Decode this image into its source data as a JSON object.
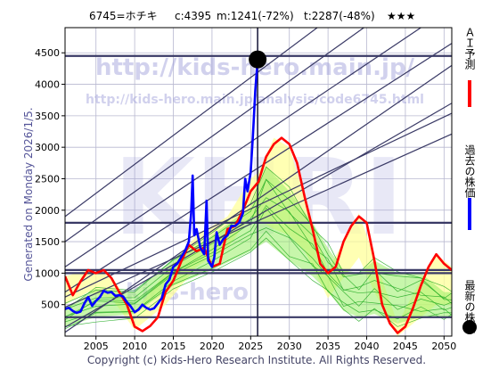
{
  "header": {
    "code_name": "6745=ホチキ",
    "close": "c:4395",
    "min": "m:1241(-72%)",
    "target": "t:2287(-48%)",
    "stars": "★★★"
  },
  "watermarks": {
    "url_main": "http://kids-hero.main.jp/",
    "url_page": "http://kids-hero.main.jp/analysis/code6745.html",
    "big": "KHRI",
    "bottom": "kids-hero"
  },
  "side_left": "Generated on Monday 2026/1/5.",
  "footer": "Copyright (c) Kids-Hero Research Institute. All Rights Reserved.",
  "legend": [
    {
      "label": "ＡＩ予測",
      "color": "#ff0000",
      "kind": "line"
    },
    {
      "label": "過去の株価",
      "color": "#0000ff",
      "kind": "line"
    },
    {
      "label": "最新の株価",
      "color": "#000000",
      "kind": "dot"
    }
  ],
  "colors": {
    "plot_bg": "#ffffff",
    "grid": "#b8b8d0",
    "band_fill": "#ffff99",
    "green_fill": "#99ee66",
    "green_line": "#22aa22",
    "ref_line": "#3a3a66",
    "price": "#0000ff",
    "forecast": "#ff0000"
  },
  "chart_data": {
    "type": "line",
    "xlim": [
      2001.0,
      2051.0
    ],
    "ylim": [
      0,
      4900
    ],
    "x_ticks": [
      2005,
      2010,
      2015,
      2020,
      2025,
      2030,
      2035,
      2040,
      2045,
      2050
    ],
    "y_ticks": [
      500,
      1000,
      1500,
      2000,
      2500,
      3000,
      3500,
      4000,
      4500
    ],
    "grid": true,
    "latest": {
      "x": 2025.9,
      "y": 4395
    },
    "hlines": [
      4450,
      1800,
      1050,
      1000,
      300
    ],
    "vline": 2025.9,
    "diagonals": [
      [
        [
          2001,
          460
        ],
        [
          2051,
          3210
        ]
      ],
      [
        [
          2001,
          620
        ],
        [
          2051,
          3540
        ]
      ],
      [
        [
          2001,
          140
        ],
        [
          2051,
          3700
        ]
      ],
      [
        [
          2001,
          60
        ],
        [
          2051,
          4300
        ]
      ],
      [
        [
          2001,
          700
        ],
        [
          2051,
          4650
        ]
      ],
      [
        [
          2001,
          1100
        ],
        [
          2051,
          5230
        ]
      ],
      [
        [
          2001,
          1500
        ],
        [
          2051,
          5900
        ]
      ],
      [
        [
          2001,
          1900
        ],
        [
          2051,
          6500
        ]
      ]
    ],
    "price_series": [
      [
        2001.0,
        430
      ],
      [
        2001.5,
        450
      ],
      [
        2002.0,
        400
      ],
      [
        2002.5,
        370
      ],
      [
        2003.0,
        390
      ],
      [
        2003.5,
        520
      ],
      [
        2004.0,
        620
      ],
      [
        2004.5,
        480
      ],
      [
        2005.0,
        560
      ],
      [
        2005.5,
        620
      ],
      [
        2006.0,
        720
      ],
      [
        2006.5,
        690
      ],
      [
        2007.0,
        700
      ],
      [
        2007.5,
        640
      ],
      [
        2008.0,
        650
      ],
      [
        2008.5,
        630
      ],
      [
        2009.0,
        540
      ],
      [
        2009.5,
        470
      ],
      [
        2010.0,
        380
      ],
      [
        2010.5,
        420
      ],
      [
        2011.0,
        500
      ],
      [
        2011.5,
        450
      ],
      [
        2012.0,
        420
      ],
      [
        2012.5,
        440
      ],
      [
        2013.0,
        520
      ],
      [
        2013.5,
        600
      ],
      [
        2014.0,
        820
      ],
      [
        2014.5,
        900
      ],
      [
        2015.0,
        1100
      ],
      [
        2015.5,
        1150
      ],
      [
        2016.0,
        1250
      ],
      [
        2016.5,
        1350
      ],
      [
        2017.0,
        1500
      ],
      [
        2017.3,
        1950
      ],
      [
        2017.5,
        2550
      ],
      [
        2017.7,
        1600
      ],
      [
        2018.0,
        1700
      ],
      [
        2018.5,
        1400
      ],
      [
        2019.0,
        1300
      ],
      [
        2019.3,
        2150
      ],
      [
        2019.5,
        1200
      ],
      [
        2020.0,
        1100
      ],
      [
        2020.3,
        1250
      ],
      [
        2020.6,
        1650
      ],
      [
        2021.0,
        1450
      ],
      [
        2021.5,
        1550
      ],
      [
        2022.0,
        1600
      ],
      [
        2022.5,
        1750
      ],
      [
        2023.0,
        1750
      ],
      [
        2023.5,
        1800
      ],
      [
        2024.0,
        1950
      ],
      [
        2024.3,
        2500
      ],
      [
        2024.6,
        2300
      ],
      [
        2025.0,
        2600
      ],
      [
        2025.3,
        3200
      ],
      [
        2025.6,
        3900
      ],
      [
        2025.9,
        4395
      ]
    ],
    "forecast_series": [
      [
        2001.0,
        950
      ],
      [
        2002.0,
        650
      ],
      [
        2003.0,
        870
      ],
      [
        2004.0,
        1050
      ],
      [
        2005.0,
        1000
      ],
      [
        2006.0,
        1050
      ],
      [
        2007.0,
        920
      ],
      [
        2008.0,
        700
      ],
      [
        2009.0,
        500
      ],
      [
        2010.0,
        150
      ],
      [
        2011.0,
        80
      ],
      [
        2012.0,
        160
      ],
      [
        2013.0,
        300
      ],
      [
        2014.0,
        700
      ],
      [
        2015.0,
        880
      ],
      [
        2016.0,
        1180
      ],
      [
        2017.0,
        1450
      ],
      [
        2018.0,
        1350
      ],
      [
        2019.0,
        1400
      ],
      [
        2020.0,
        1100
      ],
      [
        2021.0,
        1150
      ],
      [
        2022.0,
        1700
      ],
      [
        2023.0,
        1750
      ],
      [
        2024.0,
        2000
      ],
      [
        2025.0,
        2300
      ],
      [
        2026.0,
        2450
      ],
      [
        2027.0,
        2850
      ],
      [
        2028.0,
        3050
      ],
      [
        2029.0,
        3150
      ],
      [
        2030.0,
        3050
      ],
      [
        2031.0,
        2750
      ],
      [
        2032.0,
        2200
      ],
      [
        2033.0,
        1700
      ],
      [
        2034.0,
        1150
      ],
      [
        2035.0,
        1000
      ],
      [
        2036.0,
        1100
      ],
      [
        2037.0,
        1500
      ],
      [
        2038.0,
        1750
      ],
      [
        2039.0,
        1900
      ],
      [
        2040.0,
        1800
      ],
      [
        2041.0,
        1200
      ],
      [
        2042.0,
        500
      ],
      [
        2043.0,
        200
      ],
      [
        2044.0,
        50
      ],
      [
        2045.0,
        150
      ],
      [
        2046.0,
        450
      ],
      [
        2047.0,
        800
      ],
      [
        2048.0,
        1100
      ],
      [
        2049.0,
        1300
      ],
      [
        2050.0,
        1150
      ],
      [
        2051.0,
        1050
      ]
    ],
    "band_upper": [
      [
        2001.0,
        950
      ],
      [
        2004.0,
        1050
      ],
      [
        2007.0,
        950
      ],
      [
        2010.0,
        400
      ],
      [
        2014.0,
        1000
      ],
      [
        2018.0,
        1600
      ],
      [
        2022.0,
        1900
      ],
      [
        2025.0,
        2500
      ],
      [
        2026.0,
        2600
      ],
      [
        2028.0,
        3150
      ],
      [
        2030.0,
        3000
      ],
      [
        2032.0,
        2200
      ],
      [
        2035.0,
        1050
      ],
      [
        2039.0,
        1950
      ],
      [
        2041.0,
        1250
      ],
      [
        2044.0,
        200
      ],
      [
        2047.0,
        900
      ],
      [
        2049.0,
        1300
      ],
      [
        2051.0,
        1100
      ]
    ],
    "band_lower": [
      [
        2001.0,
        500
      ],
      [
        2004.0,
        700
      ],
      [
        2007.0,
        600
      ],
      [
        2010.0,
        100
      ],
      [
        2014.0,
        500
      ],
      [
        2018.0,
        1100
      ],
      [
        2022.0,
        1400
      ],
      [
        2025.0,
        1900
      ],
      [
        2026.0,
        1850
      ],
      [
        2028.0,
        1700
      ],
      [
        2030.0,
        1600
      ],
      [
        2032.0,
        1350
      ],
      [
        2035.0,
        600
      ],
      [
        2039.0,
        1250
      ],
      [
        2041.0,
        700
      ],
      [
        2044.0,
        0
      ],
      [
        2047.0,
        300
      ],
      [
        2049.0,
        500
      ],
      [
        2051.0,
        500
      ]
    ],
    "green_upper": [
      [
        2001.0,
        450
      ],
      [
        2005.0,
        750
      ],
      [
        2010.0,
        700
      ],
      [
        2015.0,
        1200
      ],
      [
        2020.0,
        1600
      ],
      [
        2025.0,
        2050
      ],
      [
        2027.0,
        2700
      ],
      [
        2030.0,
        2300
      ],
      [
        2033.0,
        1800
      ],
      [
        2035.0,
        1400
      ],
      [
        2037.0,
        1050
      ],
      [
        2039.0,
        1000
      ],
      [
        2041.0,
        1200
      ],
      [
        2044.0,
        1000
      ],
      [
        2047.0,
        1000
      ],
      [
        2050.0,
        700
      ],
      [
        2051.0,
        700
      ]
    ],
    "green_lower": [
      [
        2001.0,
        150
      ],
      [
        2005.0,
        300
      ],
      [
        2010.0,
        350
      ],
      [
        2015.0,
        800
      ],
      [
        2020.0,
        1050
      ],
      [
        2025.0,
        1350
      ],
      [
        2027.0,
        1500
      ],
      [
        2030.0,
        1200
      ],
      [
        2033.0,
        950
      ],
      [
        2035.0,
        700
      ],
      [
        2037.0,
        400
      ],
      [
        2039.0,
        300
      ],
      [
        2041.0,
        350
      ],
      [
        2044.0,
        200
      ],
      [
        2047.0,
        300
      ],
      [
        2050.0,
        300
      ],
      [
        2051.0,
        300
      ]
    ]
  }
}
